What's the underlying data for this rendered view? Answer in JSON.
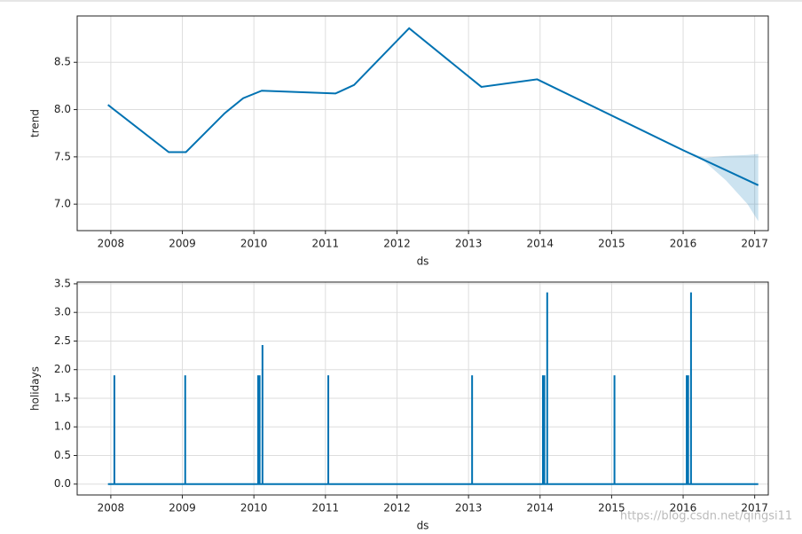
{
  "chart_data": [
    {
      "type": "line",
      "xlabel": "ds",
      "ylabel": "trend",
      "color": "#0072b2",
      "grid": true,
      "x": [
        2007.96,
        2008.81,
        2009.05,
        2009.59,
        2009.85,
        2010.11,
        2011.14,
        2011.4,
        2012.17,
        2013.18,
        2013.96,
        2016.0,
        2017.05
      ],
      "values": [
        8.05,
        7.55,
        7.55,
        7.96,
        8.12,
        8.2,
        8.17,
        8.26,
        8.86,
        8.24,
        8.32,
        7.57,
        7.2
      ],
      "band": {
        "x": [
          2016.0,
          2016.3,
          2016.6,
          2016.9,
          2017.05
        ],
        "upper": [
          7.57,
          7.49,
          7.51,
          7.52,
          7.53
        ],
        "lower": [
          7.57,
          7.45,
          7.25,
          7.0,
          6.82
        ]
      },
      "xlim": [
        2007.53,
        2017.19
      ],
      "ylim": [
        6.72,
        8.99
      ],
      "xticks": [
        2008,
        2009,
        2010,
        2011,
        2012,
        2013,
        2014,
        2015,
        2016,
        2017
      ],
      "yticks": [
        {
          "value": 7,
          "label": "7.0"
        },
        7.5,
        {
          "value": 8,
          "label": "8.0"
        },
        8.5
      ]
    },
    {
      "type": "line",
      "xlabel": "ds",
      "ylabel": "holidays",
      "color": "#0072b2",
      "grid": true,
      "x": [
        2007.96,
        2008.05,
        2008.05,
        2008.05,
        2009.04,
        2009.04,
        2009.04,
        2010.06,
        2010.06,
        2010.06,
        2010.08,
        2010.08,
        2010.08,
        2010.12,
        2010.12,
        2010.12,
        2011.04,
        2011.04,
        2011.04,
        2013.05,
        2013.05,
        2013.05,
        2014.04,
        2014.04,
        2014.04,
        2014.06,
        2014.06,
        2014.06,
        2014.1,
        2014.1,
        2014.1,
        2015.04,
        2015.04,
        2015.04,
        2016.05,
        2016.05,
        2016.05,
        2016.07,
        2016.07,
        2016.07,
        2016.11,
        2016.11,
        2016.11,
        2017.05
      ],
      "values": [
        0,
        0,
        1.9,
        0,
        0,
        1.9,
        0,
        0,
        1.9,
        0,
        0,
        1.9,
        0,
        0,
        2.43,
        0,
        0,
        1.9,
        0,
        0,
        1.9,
        0,
        0,
        1.9,
        0,
        0,
        1.9,
        0,
        0,
        3.35,
        0,
        0,
        1.9,
        0,
        0,
        1.9,
        0,
        0,
        1.9,
        0,
        0,
        3.35,
        0,
        0
      ],
      "xlim": [
        2007.53,
        2017.19
      ],
      "ylim": [
        -0.19,
        3.53
      ],
      "xticks": [
        2008,
        2009,
        2010,
        2011,
        2012,
        2013,
        2014,
        2015,
        2016,
        2017
      ],
      "yticks": [
        {
          "value": 0,
          "label": "0.0"
        },
        0.5,
        {
          "value": 1,
          "label": "1.0"
        },
        1.5,
        {
          "value": 2,
          "label": "2.0"
        },
        2.5,
        {
          "value": 3,
          "label": "3.0"
        },
        3.5
      ]
    }
  ],
  "watermark": "https://blog.csdn.net/qingsi11"
}
